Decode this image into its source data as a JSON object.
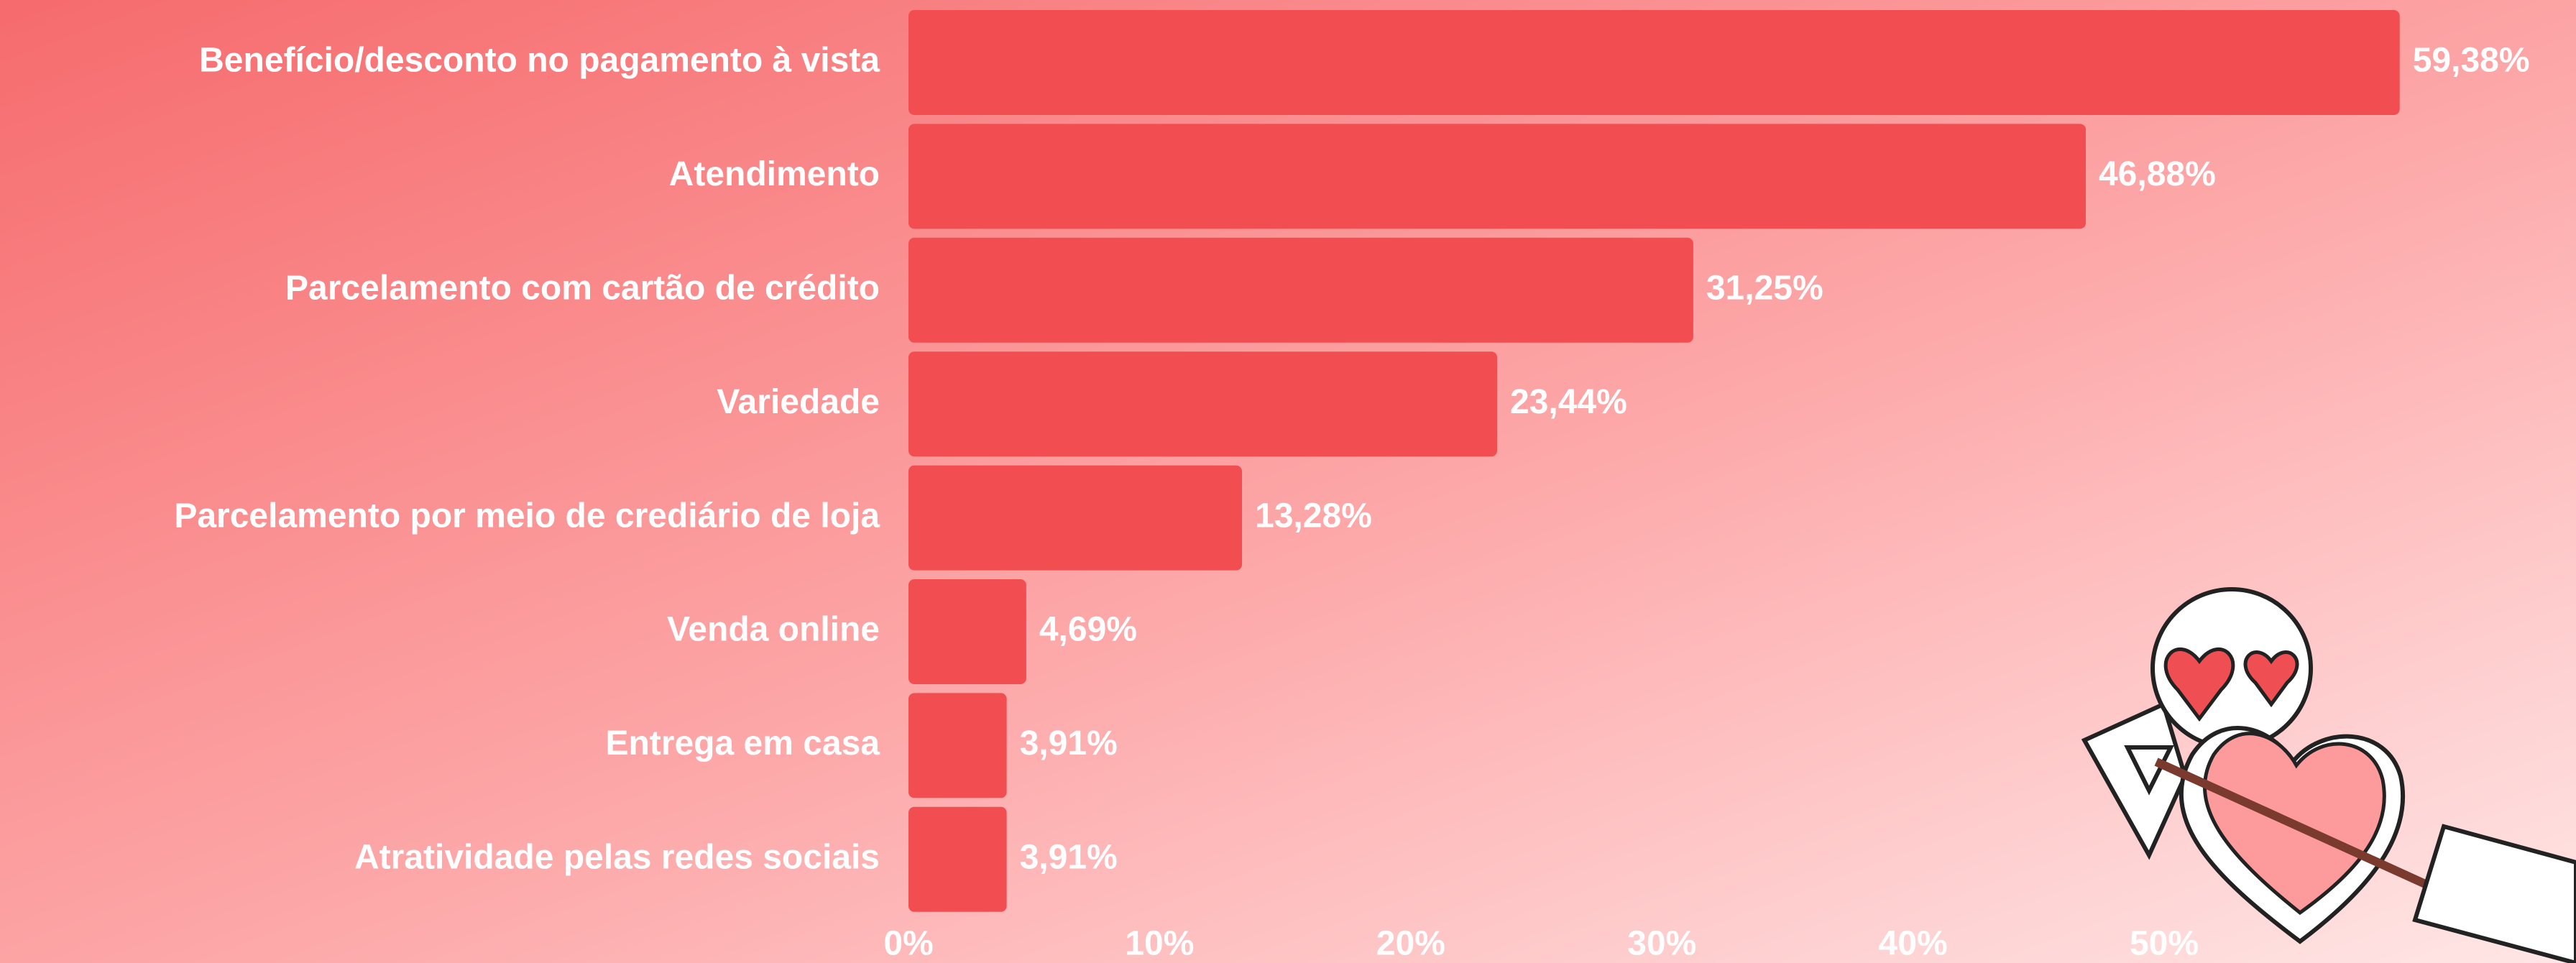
{
  "chart_data": {
    "type": "bar",
    "orientation": "horizontal",
    "categories": [
      "Benefício/desconto no pagamento à vista",
      "Atendimento",
      "Parcelamento com cartão de crédito",
      "Variedade",
      "Parcelamento por meio de crediário de loja",
      "Venda online",
      "Entrega em casa",
      "Atratividade pelas redes sociais"
    ],
    "values": [
      59.38,
      46.88,
      31.25,
      23.44,
      13.28,
      4.69,
      3.91,
      3.91
    ],
    "value_labels": [
      "59,38%",
      "46,88%",
      "31,25%",
      "23,44%",
      "13,28%",
      "4,69%",
      "3,91%",
      "3,91%"
    ],
    "color": "#f24e51",
    "xlim": [
      0,
      66.4
    ],
    "xticks": [
      {
        "value": 0,
        "label": "0%"
      },
      {
        "value": 10,
        "label": "10%"
      },
      {
        "value": 20,
        "label": "20%"
      },
      {
        "value": 30,
        "label": "30%"
      },
      {
        "value": 40,
        "label": "40%"
      },
      {
        "value": 50,
        "label": "50%"
      }
    ],
    "grid": false
  }
}
